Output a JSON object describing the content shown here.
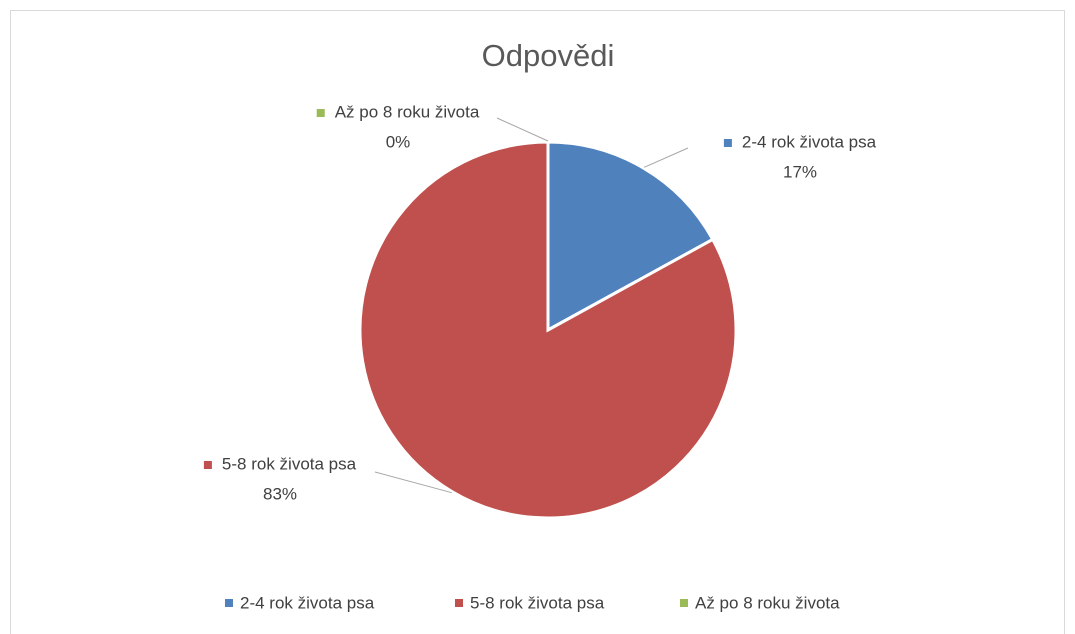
{
  "chart_data": {
    "type": "pie",
    "title": "Odpovědi",
    "categories": [
      "2-4 rok života psa",
      "5-8 rok života psa",
      "Až po 8 roku života"
    ],
    "values": [
      17,
      83,
      0
    ],
    "value_labels": [
      "17%",
      "83%",
      "0%"
    ],
    "colors": [
      "#4f81bd",
      "#c0504d",
      "#9bbb59"
    ],
    "legend": "bottom"
  }
}
